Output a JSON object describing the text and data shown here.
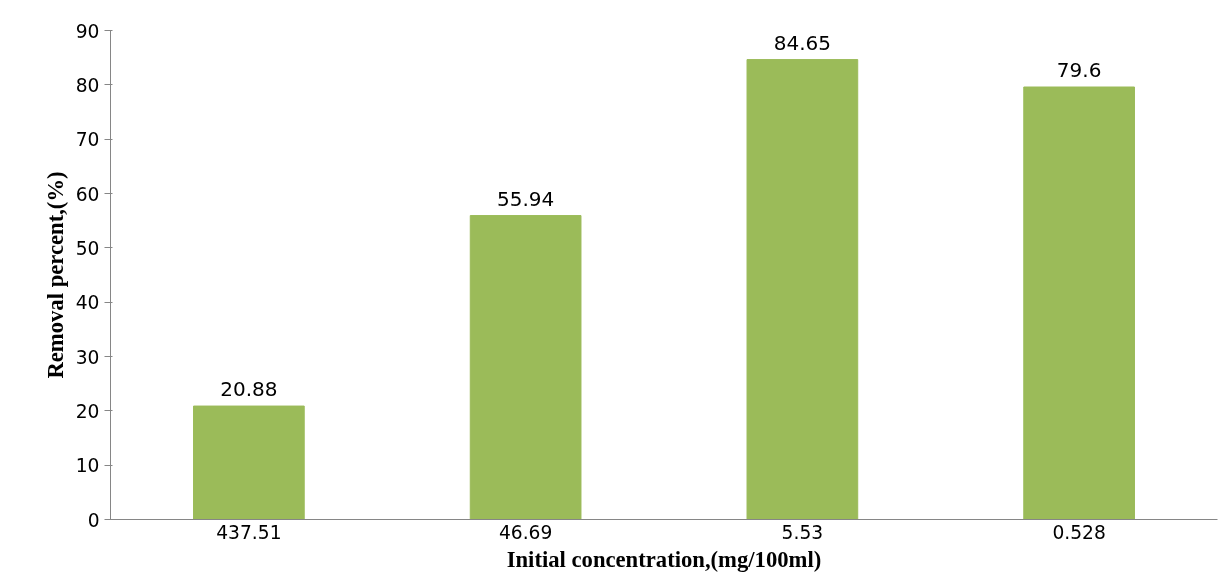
{
  "chart_data": {
    "type": "bar",
    "xlabel": "Initial concentration,(mg/100ml)",
    "ylabel": "Removal percent,(%)",
    "categories": [
      "437.51",
      "46.69",
      "5.53",
      "0.528"
    ],
    "values": [
      20.88,
      55.94,
      84.65,
      79.6
    ],
    "color": "#9bbb59",
    "ylim": [
      0,
      90
    ],
    "yticks": [
      0,
      10,
      20,
      30,
      40,
      50,
      60,
      70,
      80,
      90
    ],
    "grid": false,
    "data_labels": true
  }
}
